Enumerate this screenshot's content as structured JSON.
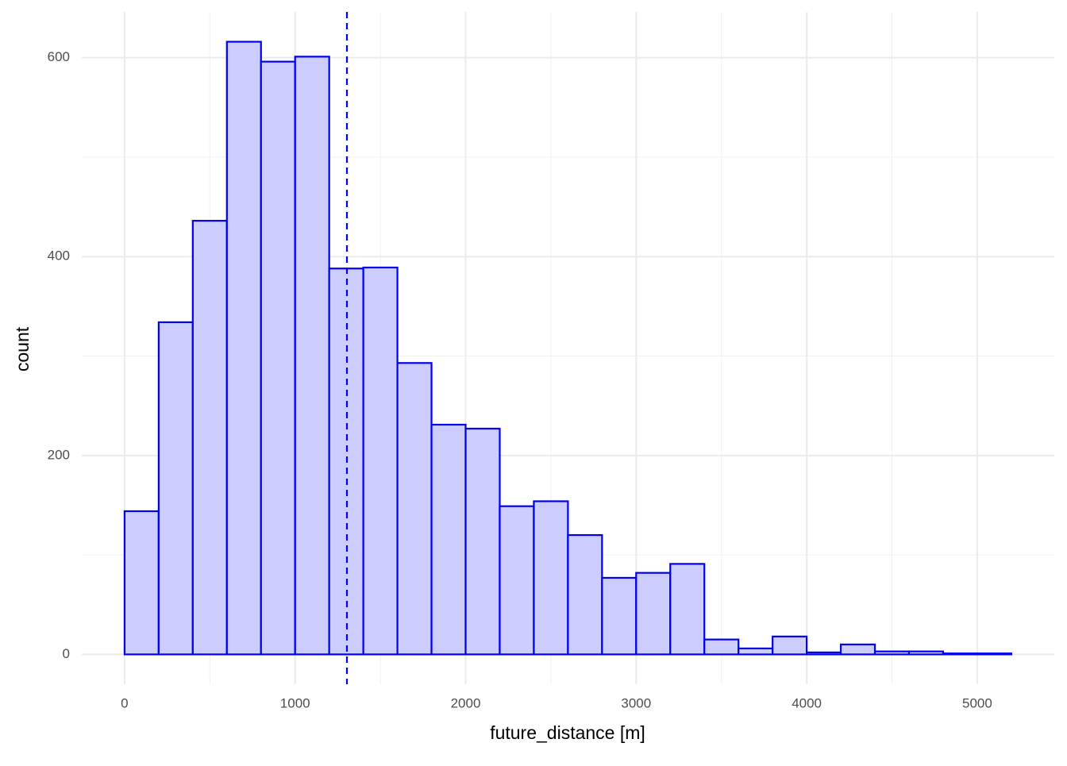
{
  "chart_data": {
    "type": "histogram",
    "x_label": "future_distance [m]",
    "y_label": "count",
    "bins": [
      0,
      200,
      400,
      600,
      800,
      1000,
      1200,
      1400,
      1600,
      1800,
      2000,
      2200,
      2400,
      2600,
      2800,
      3000,
      3200,
      3400,
      3600,
      3800,
      4000,
      4200,
      4400,
      4600,
      4800,
      5000,
      5200
    ],
    "values": [
      144,
      334,
      436,
      616,
      596,
      601,
      388,
      389,
      293,
      231,
      227,
      149,
      154,
      120,
      77,
      82,
      91,
      15,
      6,
      18,
      2,
      10,
      3,
      3,
      1,
      1
    ],
    "fill": "#ccccff",
    "color": "#0000ee",
    "vline": {
      "value": 1304,
      "color": "#0000ee",
      "dashed": true
    },
    "xlim": [
      -251,
      5452
    ],
    "ylim": [
      -30,
      646
    ],
    "xticks": [
      0,
      1000,
      2000,
      3000,
      4000,
      5000
    ],
    "yticks": [
      0,
      200,
      400,
      600
    ],
    "x_minor_grid": [
      500,
      1500,
      2500,
      3500,
      4500
    ],
    "y_minor_grid": [
      100,
      300,
      500
    ],
    "grid": true
  }
}
